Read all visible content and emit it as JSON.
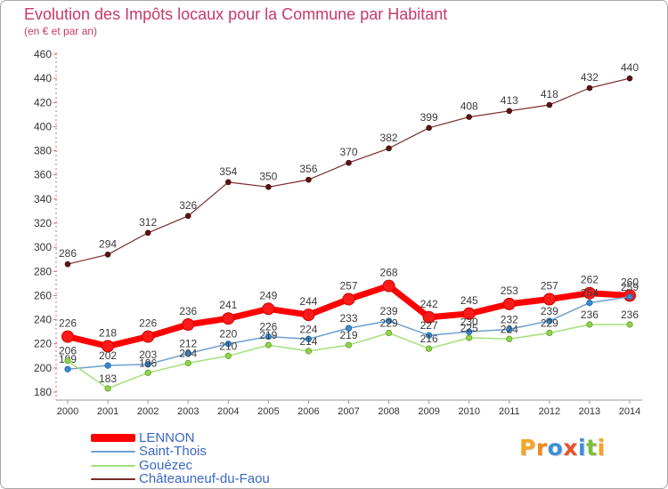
{
  "chart_data": {
    "type": "line",
    "title": "Evolution des Impôts locaux pour la Commune par Habitant",
    "subtitle": "(en € et par an)",
    "xlabel": "",
    "ylabel": "",
    "x": [
      "2000",
      "2001",
      "2002",
      "2003",
      "2004",
      "2005",
      "2006",
      "2007",
      "2008",
      "2009",
      "2010",
      "2011",
      "2012",
      "2013",
      "2014"
    ],
    "ylim": [
      180,
      460
    ],
    "yticks": [
      180,
      200,
      220,
      240,
      260,
      280,
      300,
      320,
      340,
      360,
      380,
      400,
      420,
      440,
      460
    ],
    "grid": false,
    "legend": "bottom-left",
    "series": [
      {
        "name": "LENNON",
        "color": "#ff0000",
        "marker_color": "#ff1a1a",
        "values": [
          226,
          218,
          226,
          236,
          241,
          249,
          244,
          257,
          268,
          242,
          245,
          253,
          257,
          262,
          260
        ]
      },
      {
        "name": "Saint-Thois",
        "color": "#6d9fd2",
        "marker_color": "#3a8ad0",
        "values": [
          199,
          202,
          203,
          212,
          220,
          226,
          224,
          233,
          239,
          227,
          230,
          232,
          239,
          254,
          259
        ]
      },
      {
        "name": "Gouézec",
        "color": "#a5e07a",
        "marker_color": "#8fd448",
        "values": [
          206,
          183,
          196,
          204,
          210,
          219,
          214,
          219,
          229,
          216,
          225,
          224,
          229,
          236,
          236
        ]
      },
      {
        "name": "Châteauneuf-du-Faou",
        "color": "#7a2a2a",
        "marker_color": "#5a1414",
        "values": [
          286,
          294,
          312,
          326,
          354,
          350,
          356,
          370,
          382,
          399,
          408,
          413,
          418,
          432,
          440
        ]
      }
    ]
  },
  "logo": {
    "text": "Proxiti",
    "letter_colors": [
      "#f5a623",
      "#f08a1c",
      "#3d8fd8",
      "#e8502a",
      "#3d8fd8",
      "#7cbf3a",
      "#f5a623"
    ]
  }
}
